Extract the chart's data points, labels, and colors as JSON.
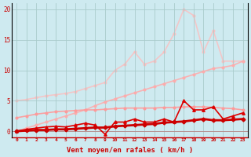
{
  "title": "",
  "xlabel": "Vent moyen/en rafales ( km/h )",
  "background_color": "#ceeaf0",
  "grid_color": "#aacccc",
  "x": [
    0,
    1,
    2,
    3,
    4,
    5,
    6,
    7,
    8,
    9,
    10,
    11,
    12,
    13,
    14,
    15,
    16,
    17,
    18,
    19,
    20,
    21,
    22,
    23
  ],
  "series": [
    {
      "y": [
        0.0,
        0.1,
        0.2,
        0.2,
        0.3,
        0.3,
        0.4,
        0.5,
        0.6,
        0.6,
        0.8,
        0.9,
        1.0,
        1.1,
        1.2,
        1.4,
        1.5,
        1.6,
        1.8,
        2.0,
        1.8,
        1.8,
        1.9,
        2.0
      ],
      "color": "#cc0000",
      "alpha": 1.0,
      "lw": 2.0,
      "marker": "D",
      "ms": 2.5,
      "zorder": 5
    },
    {
      "y": [
        0.0,
        0.3,
        0.5,
        0.7,
        0.8,
        0.7,
        1.0,
        1.3,
        1.0,
        -0.5,
        1.5,
        1.5,
        2.0,
        1.5,
        1.5,
        2.0,
        1.5,
        5.0,
        3.5,
        3.5,
        4.0,
        2.0,
        2.5,
        3.0
      ],
      "color": "#dd0000",
      "alpha": 1.0,
      "lw": 1.2,
      "marker": "^",
      "ms": 2.5,
      "zorder": 4
    },
    {
      "y": [
        2.2,
        2.5,
        2.8,
        3.0,
        3.2,
        3.3,
        3.4,
        3.5,
        3.5,
        3.6,
        3.7,
        3.8,
        3.8,
        3.8,
        3.8,
        3.9,
        3.9,
        4.0,
        4.0,
        4.0,
        3.9,
        3.8,
        3.7,
        3.5
      ],
      "color": "#ff9999",
      "alpha": 0.9,
      "lw": 1.2,
      "marker": "o",
      "ms": 2.0,
      "zorder": 3
    },
    {
      "y": [
        0.0,
        0.5,
        1.0,
        1.5,
        2.0,
        2.5,
        3.0,
        3.5,
        4.2,
        4.8,
        5.3,
        5.8,
        6.3,
        6.8,
        7.3,
        7.8,
        8.3,
        8.8,
        9.3,
        9.8,
        10.3,
        10.5,
        10.8,
        11.5
      ],
      "color": "#ffaaaa",
      "alpha": 0.85,
      "lw": 1.2,
      "marker": "o",
      "ms": 2.0,
      "zorder": 2
    },
    {
      "y": [
        5.0,
        5.2,
        5.5,
        5.8,
        6.0,
        6.2,
        6.5,
        7.0,
        7.5,
        8.0,
        10.0,
        11.0,
        13.0,
        11.0,
        11.5,
        13.0,
        16.0,
        20.0,
        19.0,
        13.0,
        16.5,
        11.5,
        11.5,
        11.5
      ],
      "color": "#ffbbbb",
      "alpha": 0.75,
      "lw": 1.2,
      "marker": "o",
      "ms": 2.0,
      "zorder": 1
    }
  ],
  "ylim": [
    -1,
    21
  ],
  "xlim": [
    -0.5,
    23.5
  ],
  "yticks": [
    0,
    5,
    10,
    15,
    20
  ],
  "xticks": [
    0,
    1,
    2,
    3,
    4,
    5,
    6,
    7,
    8,
    9,
    10,
    11,
    12,
    13,
    14,
    15,
    16,
    17,
    18,
    19,
    20,
    21,
    22,
    23
  ]
}
